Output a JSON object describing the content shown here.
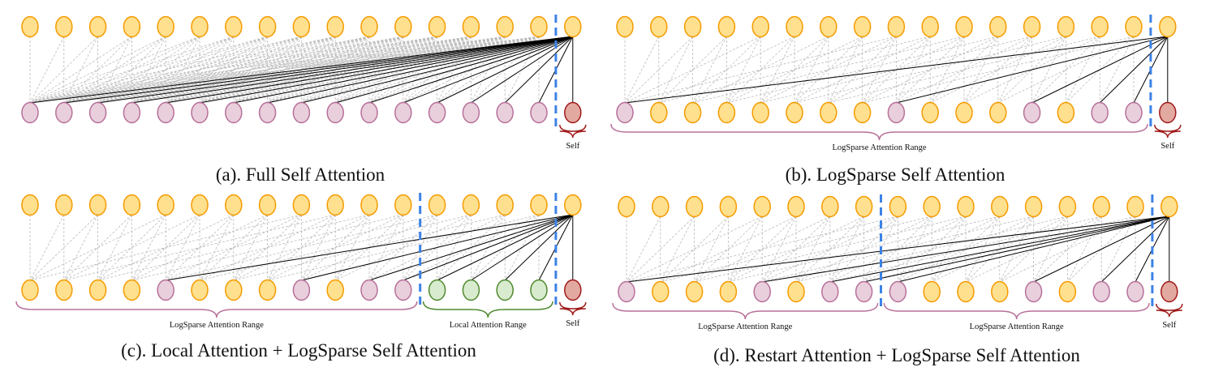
{
  "colors": {
    "yellow_fill": "#FFE08F",
    "yellow_stroke": "#F59B00",
    "pink_fill": "#E8CFDB",
    "pink_stroke": "#B8709A",
    "self_fill": "#E2A9A0",
    "self_stroke": "#A01A1A",
    "green_fill": "#D9EBCF",
    "green_stroke": "#4E8A2E",
    "divider": "#3C82E6",
    "attend_line": "#000000",
    "background_line": "#BBBBBB"
  },
  "panels": [
    {
      "id": "a",
      "caption": "(a). Full Self Attention",
      "self_label": "Self",
      "bottom_nodes": [
        "p",
        "p",
        "p",
        "p",
        "p",
        "p",
        "p",
        "p",
        "p",
        "p",
        "p",
        "p",
        "p",
        "p",
        "p",
        "p",
        "s"
      ],
      "dividers_after": [
        15
      ],
      "ranges": []
    },
    {
      "id": "b",
      "caption": "(b). LogSparse Self Attention",
      "self_label": "Self",
      "bottom_nodes": [
        "p",
        "y",
        "y",
        "y",
        "y",
        "y",
        "y",
        "y",
        "p",
        "y",
        "y",
        "y",
        "p",
        "y",
        "p",
        "p",
        "s"
      ],
      "dividers_after": [
        15
      ],
      "ranges": [
        {
          "from": 0,
          "to": 15,
          "kind": "pink",
          "label": "LogSparse Attention Range"
        }
      ]
    },
    {
      "id": "c",
      "caption": "(c). Local Attention + LogSparse Self Attention",
      "self_label": "Self",
      "bottom_nodes": [
        "y",
        "y",
        "y",
        "y",
        "p",
        "y",
        "y",
        "y",
        "p",
        "y",
        "p",
        "p",
        "g",
        "g",
        "g",
        "g",
        "s"
      ],
      "dividers_after": [
        11,
        15
      ],
      "ranges": [
        {
          "from": 0,
          "to": 11,
          "kind": "pink",
          "label": "LogSparse Attention Range"
        },
        {
          "from": 12,
          "to": 15,
          "kind": "green",
          "label": "Local Attention Range"
        }
      ]
    },
    {
      "id": "d",
      "caption": "(d). Restart Attention + LogSparse Self Attention",
      "self_label": "Self",
      "bottom_nodes": [
        "p",
        "y",
        "y",
        "y",
        "p",
        "y",
        "p",
        "p",
        "p",
        "y",
        "y",
        "y",
        "p",
        "y",
        "p",
        "p",
        "s"
      ],
      "dividers_after": [
        7,
        15
      ],
      "ranges": [
        {
          "from": 0,
          "to": 7,
          "kind": "pink",
          "label": "LogSparse Attention Range"
        },
        {
          "from": 8,
          "to": 15,
          "kind": "pink",
          "label": "LogSparse Attention Range"
        }
      ]
    }
  ]
}
